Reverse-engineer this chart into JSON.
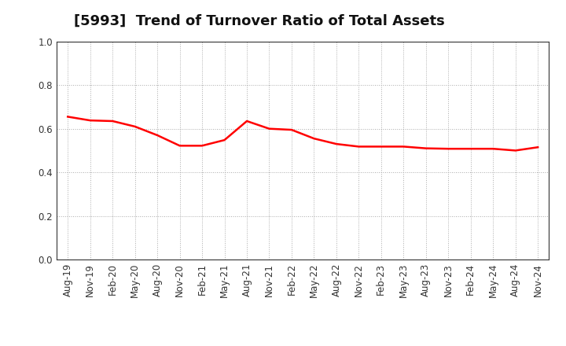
{
  "title": "[5993]  Trend of Turnover Ratio of Total Assets",
  "line_color": "#FF0000",
  "background_color": "#FFFFFF",
  "grid_color": "#AAAAAA",
  "ylim": [
    0.0,
    1.0
  ],
  "yticks": [
    0.0,
    0.2,
    0.4,
    0.6,
    0.8,
    1.0
  ],
  "x_labels": [
    "Aug-19",
    "Nov-19",
    "Feb-20",
    "May-20",
    "Aug-20",
    "Nov-20",
    "Feb-21",
    "May-21",
    "Aug-21",
    "Nov-21",
    "Feb-22",
    "May-22",
    "Aug-22",
    "Nov-22",
    "Feb-23",
    "May-23",
    "Aug-23",
    "Nov-23",
    "Feb-24",
    "May-24",
    "Aug-24",
    "Nov-24"
  ],
  "values": [
    0.655,
    0.638,
    0.635,
    0.61,
    0.57,
    0.522,
    0.522,
    0.548,
    0.635,
    0.6,
    0.595,
    0.555,
    0.53,
    0.518,
    0.518,
    0.518,
    0.51,
    0.508,
    0.508,
    0.508,
    0.5,
    0.515
  ],
  "title_fontsize": 13,
  "tick_fontsize": 8.5,
  "line_width": 1.8
}
